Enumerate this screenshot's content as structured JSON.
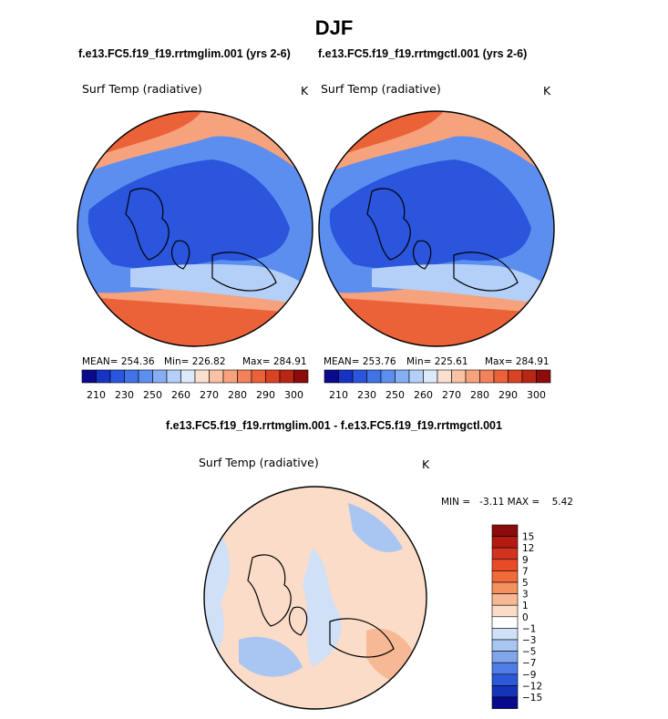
{
  "title": "DJF",
  "panels": [
    {
      "subtitle": "f.e13.FC5.f19_f19.rrtmglim.001 (yrs 2-6)",
      "variable": "Surf Temp (radiative)",
      "units": "K",
      "mean_text": "MEAN= 254.36",
      "min_text": "Min= 226.82",
      "max_text": "Max= 284.91"
    },
    {
      "subtitle": "f.e13.FC5.f19_f19.rrtmgctl.001 (yrs 2-6)",
      "variable": "Surf Temp (radiative)",
      "units": "K",
      "mean_text": "MEAN= 253.76",
      "min_text": "Min= 225.61",
      "max_text": "Max= 284.91"
    }
  ],
  "abs_colorbar": {
    "colors": [
      "#0a0a8c",
      "#1633c4",
      "#2a55dc",
      "#3f73e6",
      "#5b8eef",
      "#86aef5",
      "#b4cff8",
      "#dcebfb",
      "#fbe0d0",
      "#f9c2a4",
      "#f6a27c",
      "#f3825a",
      "#ec6238",
      "#d94324",
      "#b82616",
      "#8c0b0b"
    ],
    "labels": [
      "210",
      "230",
      "250",
      "260",
      "270",
      "280",
      "290",
      "300"
    ]
  },
  "difference": {
    "title": "f.e13.FC5.f19_f19.rrtmglim.001 - f.e13.FC5.f19_f19.rrtmgctl.001",
    "variable": "Surf Temp (radiative)",
    "units": "K",
    "min_max_text": "MIN =   -3.11 MAX =    5.42",
    "colorbar": {
      "labels": [
        "15",
        "12",
        "9",
        "7",
        "5",
        "3",
        "1",
        "0",
        "−1",
        "−3",
        "−5",
        "−7",
        "−9",
        "−12",
        "−15"
      ],
      "colors": [
        "#8c0b0b",
        "#b21a12",
        "#d2321f",
        "#ea4a28",
        "#f26a3a",
        "#f5905f",
        "#f7b896",
        "#fbdcc8",
        "#ffffff",
        "#cfe0f7",
        "#a9c6f2",
        "#7fa6ec",
        "#4f7fe6",
        "#2c58d9",
        "#1634b8",
        "#0a0a8c"
      ]
    }
  },
  "map_colors": {
    "cold": "#2a55dc",
    "cool": "#5b8eef",
    "mid": "#b4cff8",
    "warm": "#f6a27c",
    "hot": "#ec6238",
    "diff_warm": "#fbdcc8",
    "diff_cool": "#cfe0f7",
    "diff_cooler": "#a9c6f2",
    "diff_hot": "#f7b896"
  }
}
